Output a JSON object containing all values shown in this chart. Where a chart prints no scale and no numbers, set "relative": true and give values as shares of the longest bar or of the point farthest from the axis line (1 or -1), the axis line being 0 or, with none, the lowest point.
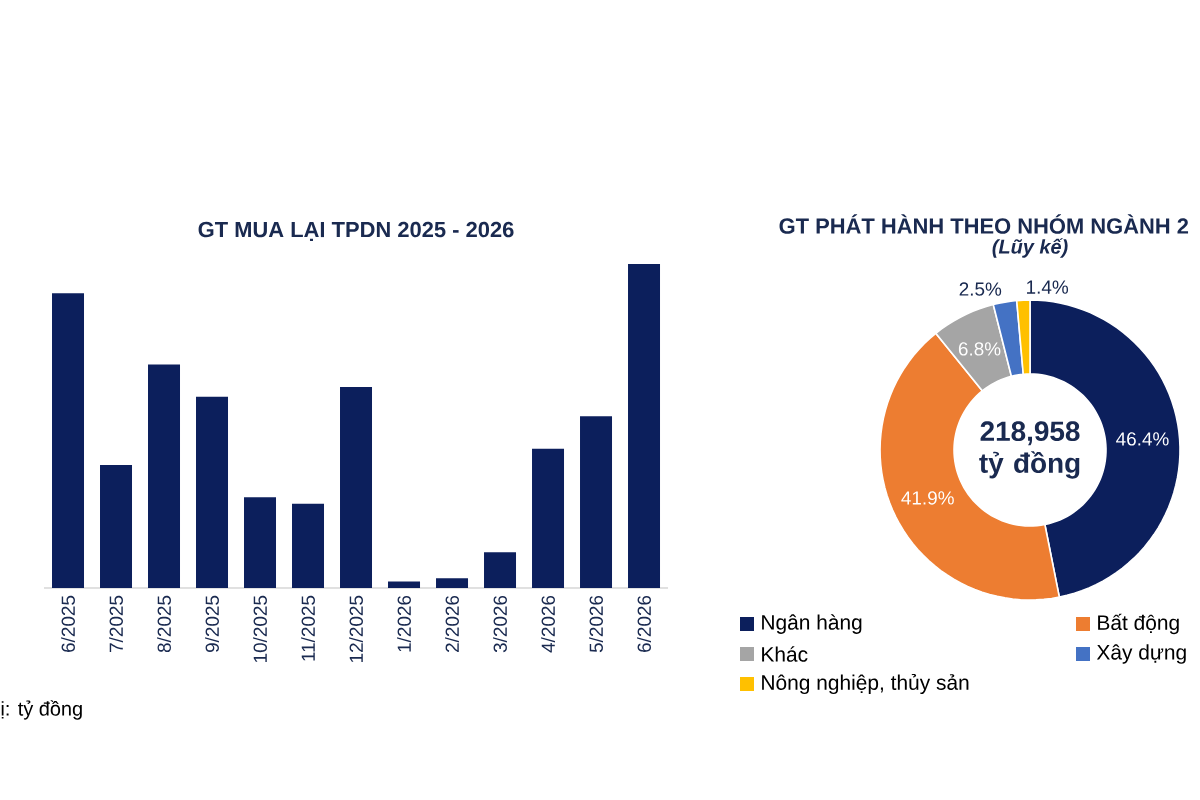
{
  "chart_data": [
    {
      "type": "bar",
      "title": "GT MUA LẠI TPDN 2025 - 2026",
      "relative": true,
      "color": "#0c1f5c",
      "categories": [
        "6/2025",
        "7/2025",
        "8/2025",
        "9/2025",
        "10/2025",
        "11/2025",
        "12/2025",
        "1/2026",
        "2/2026",
        "3/2026",
        "4/2026",
        "5/2026",
        "6/2026"
      ],
      "values": [
        0.91,
        0.38,
        0.69,
        0.59,
        0.28,
        0.26,
        0.62,
        0.02,
        0.03,
        0.11,
        0.43,
        0.53,
        1
      ],
      "annotations": [
        "ị: tỷ đồng"
      ]
    },
    {
      "type": "donut",
      "title": "GT PHÁT HÀNH THEO NHÓM NGÀNH 2",
      "subtitle": "(Lũy kế)",
      "categories": [
        "Ngân hàng",
        "Bất động",
        "Khác",
        "Xây dựng",
        "Nông nghiệp, thủy sản"
      ],
      "values": [
        46.4,
        41.9,
        6.8,
        2.5,
        1.4
      ],
      "colors": [
        "#0c1f5c",
        "#ed7d31",
        "#a5a5a5",
        "#4472c4",
        "#ffc000"
      ],
      "value_labels": [
        "46.4%",
        "41.9%",
        "6.8%",
        "2.5%",
        "1.4%"
      ],
      "legend": "bottom",
      "annotations": [
        "218,958 tỷ đồng"
      ]
    }
  ]
}
